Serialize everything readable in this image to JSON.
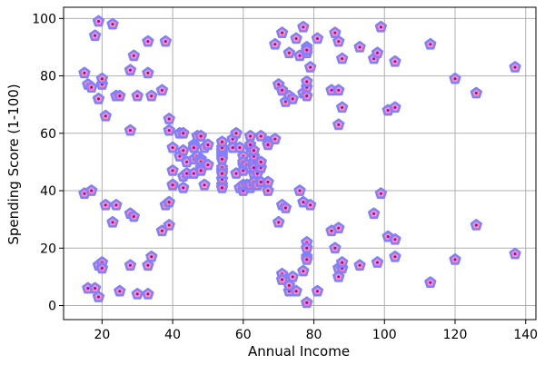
{
  "chart_data": {
    "type": "scatter",
    "xlabel": "Annual Income",
    "ylabel": "Spending Score (1-100)",
    "xlim": [
      9.1,
      142.9
    ],
    "ylim": [
      -4.9,
      103.9
    ],
    "xticks": [
      20,
      40,
      60,
      80,
      100,
      120,
      140
    ],
    "yticks": [
      0,
      20,
      40,
      60,
      80,
      100
    ],
    "grid": true,
    "marker": "pentagon",
    "colors": {
      "marker_edge": "#8080ff",
      "marker_face": "#ff80a0",
      "inner_dot": "#9900cc",
      "grid": "#b0b0b0"
    },
    "points": [
      [
        15,
        39
      ],
      [
        15,
        81
      ],
      [
        16,
        6
      ],
      [
        16,
        77
      ],
      [
        17,
        40
      ],
      [
        17,
        76
      ],
      [
        18,
        6
      ],
      [
        18,
        94
      ],
      [
        19,
        3
      ],
      [
        19,
        72
      ],
      [
        19,
        14
      ],
      [
        19,
        99
      ],
      [
        20,
        15
      ],
      [
        20,
        77
      ],
      [
        20,
        13
      ],
      [
        20,
        79
      ],
      [
        21,
        35
      ],
      [
        21,
        66
      ],
      [
        23,
        29
      ],
      [
        23,
        98
      ],
      [
        24,
        35
      ],
      [
        24,
        73
      ],
      [
        25,
        5
      ],
      [
        25,
        73
      ],
      [
        28,
        14
      ],
      [
        28,
        82
      ],
      [
        28,
        32
      ],
      [
        28,
        61
      ],
      [
        29,
        31
      ],
      [
        29,
        87
      ],
      [
        30,
        4
      ],
      [
        30,
        73
      ],
      [
        33,
        4
      ],
      [
        33,
        92
      ],
      [
        33,
        14
      ],
      [
        33,
        81
      ],
      [
        34,
        17
      ],
      [
        34,
        73
      ],
      [
        37,
        26
      ],
      [
        37,
        75
      ],
      [
        38,
        35
      ],
      [
        38,
        92
      ],
      [
        39,
        36
      ],
      [
        39,
        61
      ],
      [
        39,
        28
      ],
      [
        39,
        65
      ],
      [
        40,
        55
      ],
      [
        40,
        47
      ],
      [
        40,
        42
      ],
      [
        40,
        42
      ],
      [
        42,
        52
      ],
      [
        42,
        60
      ],
      [
        43,
        54
      ],
      [
        43,
        60
      ],
      [
        43,
        45
      ],
      [
        43,
        41
      ],
      [
        44,
        50
      ],
      [
        44,
        46
      ],
      [
        46,
        51
      ],
      [
        46,
        46
      ],
      [
        46,
        56
      ],
      [
        46,
        55
      ],
      [
        47,
        52
      ],
      [
        47,
        59
      ],
      [
        48,
        51
      ],
      [
        48,
        59
      ],
      [
        48,
        50
      ],
      [
        48,
        48
      ],
      [
        48,
        59
      ],
      [
        48,
        47
      ],
      [
        49,
        55
      ],
      [
        49,
        42
      ],
      [
        50,
        49
      ],
      [
        50,
        56
      ],
      [
        54,
        47
      ],
      [
        54,
        54
      ],
      [
        54,
        53
      ],
      [
        54,
        48
      ],
      [
        54,
        52
      ],
      [
        54,
        42
      ],
      [
        54,
        51
      ],
      [
        54,
        55
      ],
      [
        54,
        41
      ],
      [
        54,
        44
      ],
      [
        54,
        57
      ],
      [
        54,
        46
      ],
      [
        57,
        58
      ],
      [
        57,
        55
      ],
      [
        58,
        60
      ],
      [
        58,
        46
      ],
      [
        59,
        55
      ],
      [
        59,
        41
      ],
      [
        60,
        49
      ],
      [
        60,
        40
      ],
      [
        60,
        42
      ],
      [
        60,
        52
      ],
      [
        60,
        47
      ],
      [
        60,
        50
      ],
      [
        61,
        42
      ],
      [
        61,
        49
      ],
      [
        62,
        41
      ],
      [
        62,
        48
      ],
      [
        62,
        59
      ],
      [
        62,
        55
      ],
      [
        62,
        56
      ],
      [
        62,
        42
      ],
      [
        63,
        50
      ],
      [
        63,
        46
      ],
      [
        63,
        43
      ],
      [
        63,
        48
      ],
      [
        63,
        52
      ],
      [
        63,
        54
      ],
      [
        64,
        42
      ],
      [
        64,
        46
      ],
      [
        65,
        48
      ],
      [
        65,
        50
      ],
      [
        65,
        43
      ],
      [
        65,
        59
      ],
      [
        67,
        43
      ],
      [
        67,
        57
      ],
      [
        67,
        56
      ],
      [
        67,
        40
      ],
      [
        69,
        58
      ],
      [
        69,
        91
      ],
      [
        70,
        29
      ],
      [
        70,
        77
      ],
      [
        71,
        35
      ],
      [
        71,
        95
      ],
      [
        71,
        11
      ],
      [
        71,
        75
      ],
      [
        71,
        9
      ],
      [
        71,
        75
      ],
      [
        72,
        34
      ],
      [
        72,
        71
      ],
      [
        73,
        5
      ],
      [
        73,
        88
      ],
      [
        73,
        7
      ],
      [
        73,
        73
      ],
      [
        74,
        10
      ],
      [
        74,
        72
      ],
      [
        75,
        5
      ],
      [
        75,
        93
      ],
      [
        76,
        40
      ],
      [
        76,
        87
      ],
      [
        77,
        12
      ],
      [
        77,
        97
      ],
      [
        77,
        36
      ],
      [
        77,
        74
      ],
      [
        78,
        22
      ],
      [
        78,
        90
      ],
      [
        78,
        17
      ],
      [
        78,
        88
      ],
      [
        78,
        20
      ],
      [
        78,
        76
      ],
      [
        78,
        16
      ],
      [
        78,
        89
      ],
      [
        78,
        1
      ],
      [
        78,
        78
      ],
      [
        78,
        1
      ],
      [
        78,
        73
      ],
      [
        79,
        35
      ],
      [
        79,
        83
      ],
      [
        81,
        5
      ],
      [
        81,
        93
      ],
      [
        85,
        26
      ],
      [
        85,
        75
      ],
      [
        86,
        20
      ],
      [
        86,
        95
      ],
      [
        87,
        27
      ],
      [
        87,
        63
      ],
      [
        87,
        13
      ],
      [
        87,
        75
      ],
      [
        87,
        10
      ],
      [
        87,
        92
      ],
      [
        88,
        13
      ],
      [
        88,
        86
      ],
      [
        88,
        15
      ],
      [
        88,
        69
      ],
      [
        93,
        14
      ],
      [
        93,
        90
      ],
      [
        97,
        32
      ],
      [
        97,
        86
      ],
      [
        98,
        15
      ],
      [
        98,
        88
      ],
      [
        99,
        39
      ],
      [
        99,
        97
      ],
      [
        101,
        24
      ],
      [
        101,
        68
      ],
      [
        103,
        17
      ],
      [
        103,
        85
      ],
      [
        103,
        23
      ],
      [
        103,
        69
      ],
      [
        113,
        8
      ],
      [
        113,
        91
      ],
      [
        120,
        16
      ],
      [
        120,
        79
      ],
      [
        126,
        28
      ],
      [
        126,
        74
      ],
      [
        137,
        18
      ],
      [
        137,
        83
      ]
    ]
  }
}
